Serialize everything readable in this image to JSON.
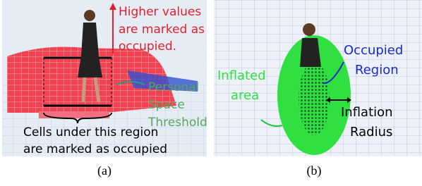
{
  "panels": [
    {
      "caption": "(a)",
      "annotations": {
        "higher": [
          "Higher values",
          "are marked as",
          "occupied."
        ],
        "threshold": [
          "Personal",
          "Space",
          "Threshold"
        ],
        "cells": [
          "Cells under this region",
          "are marked as occupied"
        ]
      }
    },
    {
      "caption": "(b)",
      "annotations": {
        "occupied": [
          "Occupied",
          "Region"
        ],
        "inflated": [
          "Inflated",
          "area"
        ],
        "radius": [
          "Inflation",
          "Radius"
        ]
      }
    }
  ]
}
